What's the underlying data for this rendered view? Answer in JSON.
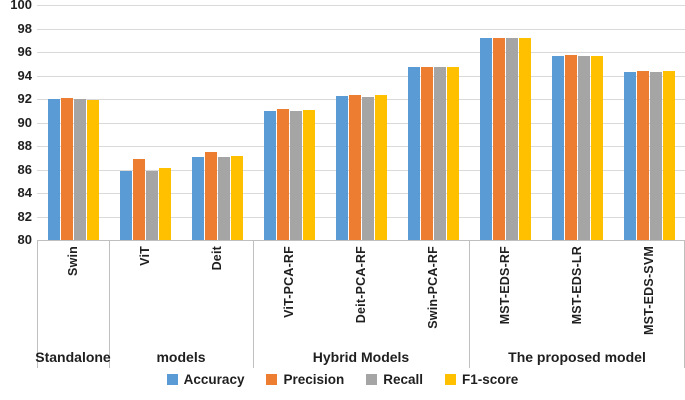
{
  "chart_data": {
    "type": "bar",
    "title": "",
    "xlabel": "",
    "ylabel": "",
    "ylim": [
      80,
      100
    ],
    "ytick_step": 2,
    "grid": "horizontal",
    "legend_position": "bottom",
    "categories": [
      "Swin",
      "ViT",
      "Deit",
      "ViT-PCA-RF",
      "Deit-PCA-RF",
      "Swin-PCA-RF",
      "MST-EDS-RF",
      "MST-EDS-LR",
      "MST-EDS-SVM"
    ],
    "series": [
      {
        "name": "Accuracy",
        "color": "#5B9BD5",
        "values": [
          92.0,
          85.9,
          87.05,
          91.0,
          92.25,
          94.75,
          97.15,
          95.65,
          94.3
        ]
      },
      {
        "name": "Precision",
        "color": "#ED7D31",
        "values": [
          92.1,
          86.9,
          87.45,
          91.15,
          92.35,
          94.75,
          97.2,
          95.75,
          94.4
        ]
      },
      {
        "name": "Recall",
        "color": "#A5A5A5",
        "values": [
          92.0,
          85.9,
          87.05,
          91.0,
          92.2,
          94.7,
          97.15,
          95.65,
          94.3
        ]
      },
      {
        "name": "F1-score",
        "color": "#FFC000",
        "values": [
          91.9,
          86.1,
          87.15,
          91.05,
          92.3,
          94.75,
          97.2,
          95.7,
          94.35
        ]
      }
    ],
    "category_groups": [
      {
        "label": "Standalone",
        "start": 0,
        "end": 0
      },
      {
        "label": "models",
        "start": 1,
        "end": 2
      },
      {
        "label": "Hybrid Models",
        "start": 3,
        "end": 5
      },
      {
        "label": "The proposed model",
        "start": 6,
        "end": 8
      }
    ]
  },
  "colors": {
    "accuracy": "#5B9BD5",
    "precision": "#ED7D31",
    "recall": "#A5A5A5",
    "f1_score": "#FFC000",
    "gridline": "#d9d9d9",
    "axis_line": "#bfbfbf",
    "text": "#1f1f1f",
    "background": "#ffffff"
  }
}
